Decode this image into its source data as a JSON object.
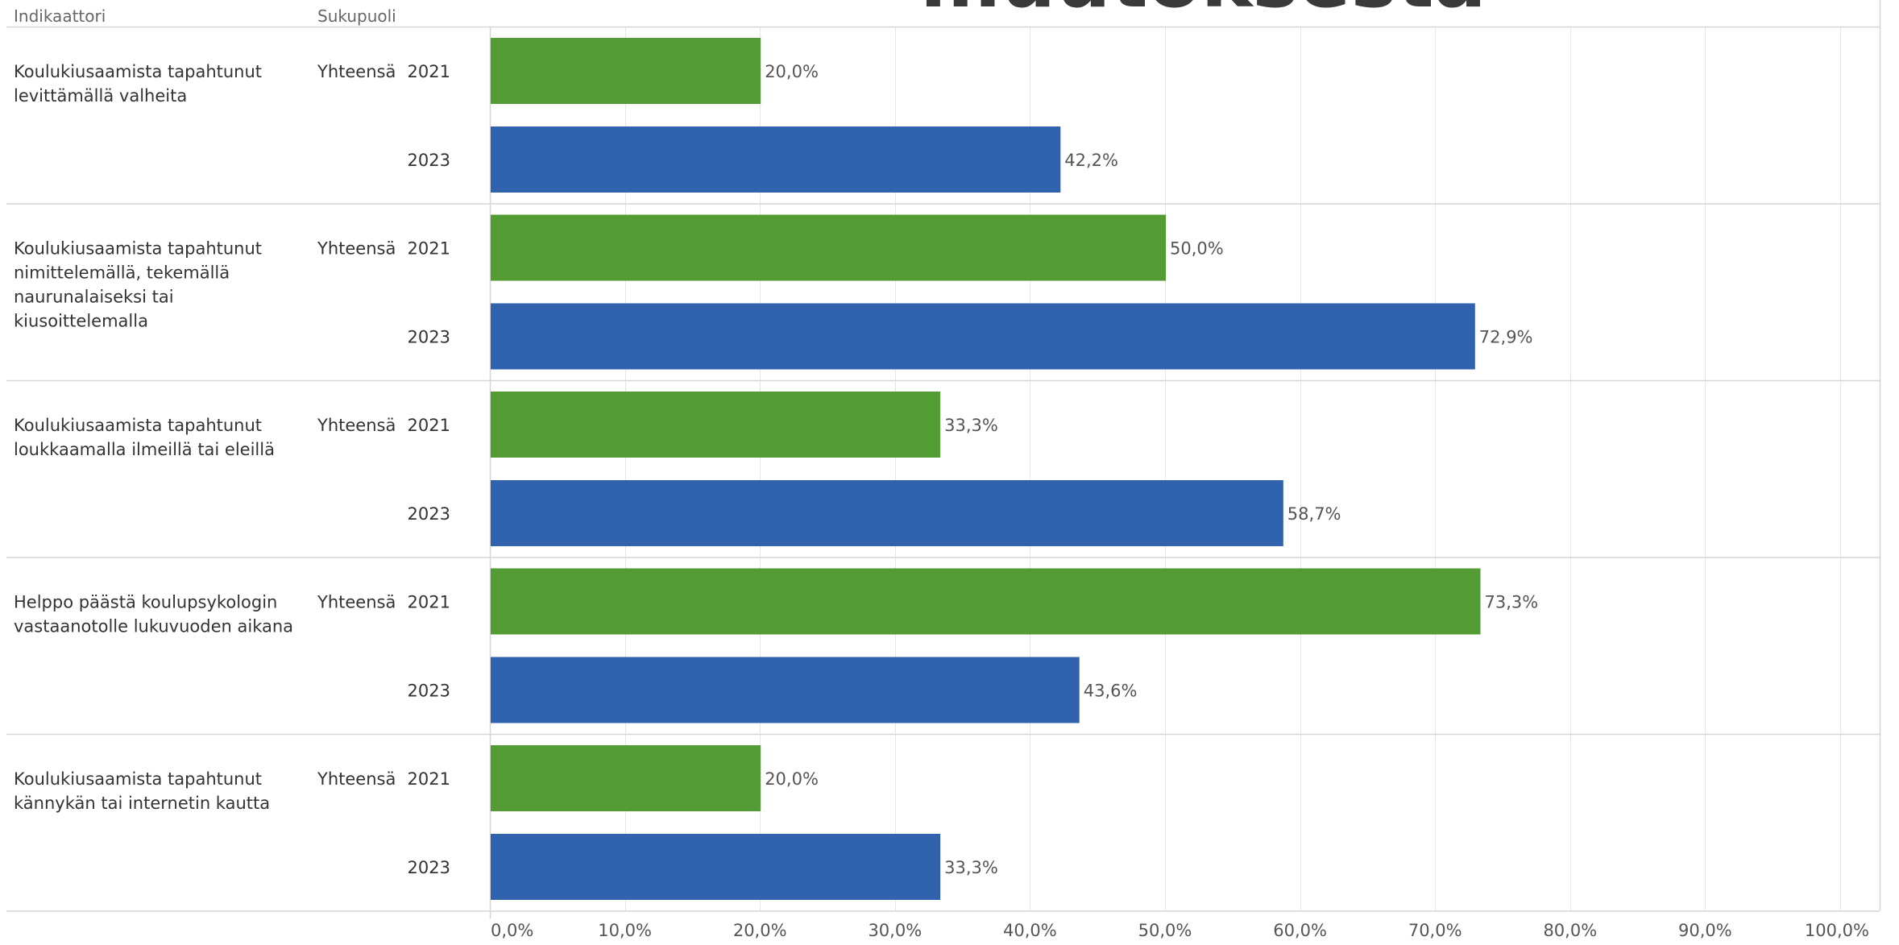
{
  "overlay_title": "muutoksesta",
  "headers": {
    "indicator": "Indikaattori",
    "sex": "Sukupuoli"
  },
  "colors": {
    "2021": "#539b33",
    "2023": "#3162ad",
    "grid": "#e6e6e6",
    "separator": "#d6d6d6"
  },
  "chart_data": {
    "type": "bar",
    "orientation": "horizontal",
    "xlim": [
      0,
      100
    ],
    "xticks": [
      "0,0%",
      "10,0%",
      "20,0%",
      "30,0%",
      "40,0%",
      "50,0%",
      "60,0%",
      "70,0%",
      "80,0%",
      "90,0%",
      "100,0%"
    ],
    "grid": true,
    "groups": [
      {
        "indicator": [
          "Koulukiusaamista tapahtunut",
          "levittämällä valheita"
        ],
        "sex": "Yhteensä",
        "bars": [
          {
            "year": "2021",
            "value": 20.0,
            "label": "20,0%"
          },
          {
            "year": "2023",
            "value": 42.2,
            "label": "42,2%"
          }
        ]
      },
      {
        "indicator": [
          "Koulukiusaamista tapahtunut",
          "nimittelemällä, tekemällä",
          "naurunalaiseksi tai",
          "kiusoittelemalla"
        ],
        "sex": "Yhteensä",
        "bars": [
          {
            "year": "2021",
            "value": 50.0,
            "label": "50,0%"
          },
          {
            "year": "2023",
            "value": 72.9,
            "label": "72,9%"
          }
        ]
      },
      {
        "indicator": [
          "Koulukiusaamista tapahtunut",
          "loukkaamalla ilmeillä tai eleillä"
        ],
        "sex": "Yhteensä",
        "bars": [
          {
            "year": "2021",
            "value": 33.3,
            "label": "33,3%"
          },
          {
            "year": "2023",
            "value": 58.7,
            "label": "58,7%"
          }
        ]
      },
      {
        "indicator": [
          "Helppo päästä koulupsykologin",
          "vastaanotolle lukuvuoden aikana"
        ],
        "sex": "Yhteensä",
        "bars": [
          {
            "year": "2021",
            "value": 73.3,
            "label": "73,3%"
          },
          {
            "year": "2023",
            "value": 43.6,
            "label": "43,6%"
          }
        ]
      },
      {
        "indicator": [
          "Koulukiusaamista tapahtunut",
          "kännykän tai internetin kautta"
        ],
        "sex": "Yhteensä",
        "bars": [
          {
            "year": "2021",
            "value": 20.0,
            "label": "20,0%"
          },
          {
            "year": "2023",
            "value": 33.3,
            "label": "33,3%"
          }
        ]
      }
    ]
  }
}
